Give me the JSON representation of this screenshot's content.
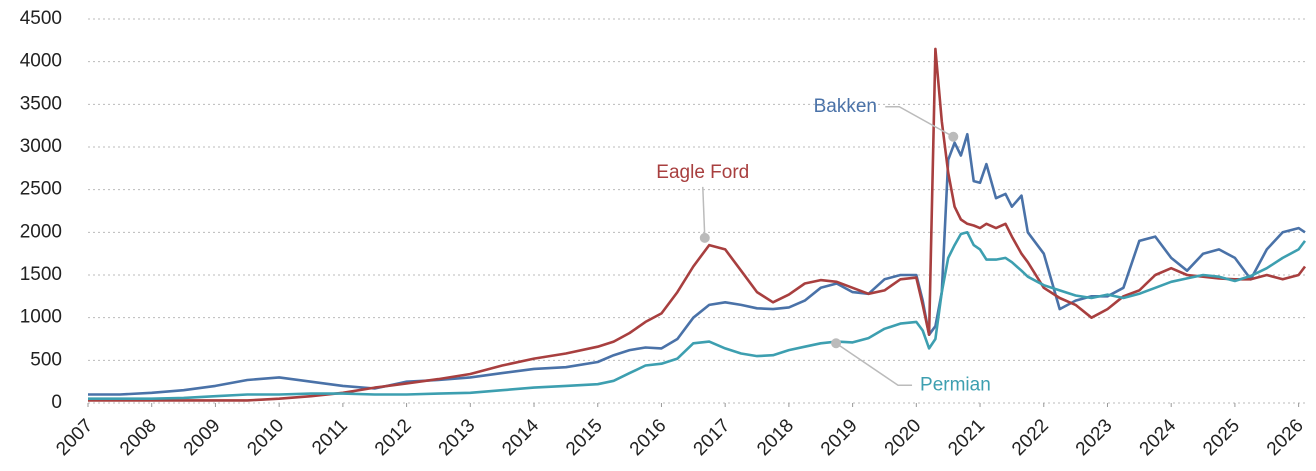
{
  "chart_data": {
    "type": "line",
    "x": [
      2007,
      2007.5,
      2008,
      2008.5,
      2009,
      2009.5,
      2010,
      2010.5,
      2011,
      2011.5,
      2012,
      2012.5,
      2013,
      2013.5,
      2014,
      2014.5,
      2015,
      2015.25,
      2015.5,
      2015.75,
      2016,
      2016.25,
      2016.5,
      2016.75,
      2017,
      2017.25,
      2017.5,
      2017.75,
      2018,
      2018.25,
      2018.5,
      2018.75,
      2019,
      2019.25,
      2019.5,
      2019.75,
      2020,
      2020.1,
      2020.2,
      2020.3,
      2020.4,
      2020.5,
      2020.6,
      2020.7,
      2020.8,
      2020.9,
      2021,
      2021.1,
      2021.25,
      2021.4,
      2021.5,
      2021.65,
      2021.75,
      2022,
      2022.25,
      2022.5,
      2022.75,
      2023,
      2023.25,
      2023.5,
      2023.75,
      2024,
      2024.25,
      2024.5,
      2024.75,
      2025,
      2025.25,
      2025.5,
      2025.75,
      2026,
      2026.1
    ],
    "series": [
      {
        "name": "Bakken",
        "color": "#4a72a8",
        "values": [
          100,
          100,
          120,
          150,
          200,
          270,
          300,
          250,
          200,
          170,
          250,
          270,
          300,
          350,
          400,
          420,
          480,
          560,
          620,
          650,
          640,
          750,
          1000,
          1150,
          1180,
          1150,
          1110,
          1100,
          1120,
          1200,
          1350,
          1400,
          1300,
          1280,
          1450,
          1500,
          1500,
          1200,
          800,
          900,
          1300,
          2850,
          3050,
          2900,
          3150,
          2600,
          2580,
          2800,
          2400,
          2450,
          2300,
          2430,
          2000,
          1750,
          1100,
          1200,
          1250,
          1250,
          1350,
          1900,
          1950,
          1700,
          1550,
          1750,
          1800,
          1700,
          1450,
          1800,
          2000,
          2050,
          2000
        ]
      },
      {
        "name": "Eagle Ford",
        "color": "#a83f3f",
        "values": [
          30,
          30,
          30,
          30,
          30,
          30,
          50,
          80,
          120,
          180,
          230,
          280,
          340,
          440,
          520,
          580,
          660,
          720,
          820,
          950,
          1050,
          1300,
          1600,
          1850,
          1800,
          1550,
          1300,
          1180,
          1270,
          1400,
          1440,
          1420,
          1350,
          1280,
          1320,
          1450,
          1470,
          1150,
          800,
          4150,
          3300,
          2700,
          2300,
          2150,
          2100,
          2080,
          2050,
          2100,
          2050,
          2100,
          1950,
          1750,
          1650,
          1350,
          1230,
          1150,
          1000,
          1100,
          1250,
          1320,
          1500,
          1580,
          1500,
          1480,
          1460,
          1450,
          1450,
          1500,
          1450,
          1500,
          1600
        ]
      },
      {
        "name": "Permian",
        "color": "#3d9fb0",
        "values": [
          50,
          50,
          50,
          60,
          80,
          100,
          100,
          110,
          110,
          100,
          100,
          110,
          120,
          150,
          180,
          200,
          220,
          260,
          350,
          440,
          460,
          520,
          700,
          720,
          640,
          580,
          550,
          560,
          620,
          660,
          700,
          720,
          710,
          760,
          870,
          930,
          950,
          850,
          640,
          750,
          1300,
          1700,
          1850,
          1980,
          2000,
          1850,
          1800,
          1680,
          1680,
          1700,
          1650,
          1550,
          1480,
          1380,
          1320,
          1260,
          1230,
          1270,
          1230,
          1280,
          1350,
          1420,
          1460,
          1500,
          1480,
          1430,
          1490,
          1580,
          1700,
          1800,
          1900
        ]
      }
    ],
    "annotations": [
      {
        "text": "Eagle Ford",
        "x": 2016.68,
        "y": 1935
      },
      {
        "text": "Bakken",
        "x": 2020.58,
        "y": 3120
      },
      {
        "text": "Permian",
        "x": 2018.74,
        "y": 700
      }
    ],
    "xlim": [
      2007,
      2026.1
    ],
    "xticks": [
      2007,
      2008,
      2009,
      2010,
      2011,
      2012,
      2013,
      2014,
      2015,
      2016,
      2017,
      2018,
      2019,
      2020,
      2021,
      2022,
      2023,
      2024,
      2025,
      2026
    ],
    "ylim": [
      0,
      4500
    ],
    "yticks": [
      0,
      500,
      1000,
      1500,
      2000,
      2500,
      3000,
      3500,
      4000,
      4500
    ],
    "grid": true
  }
}
